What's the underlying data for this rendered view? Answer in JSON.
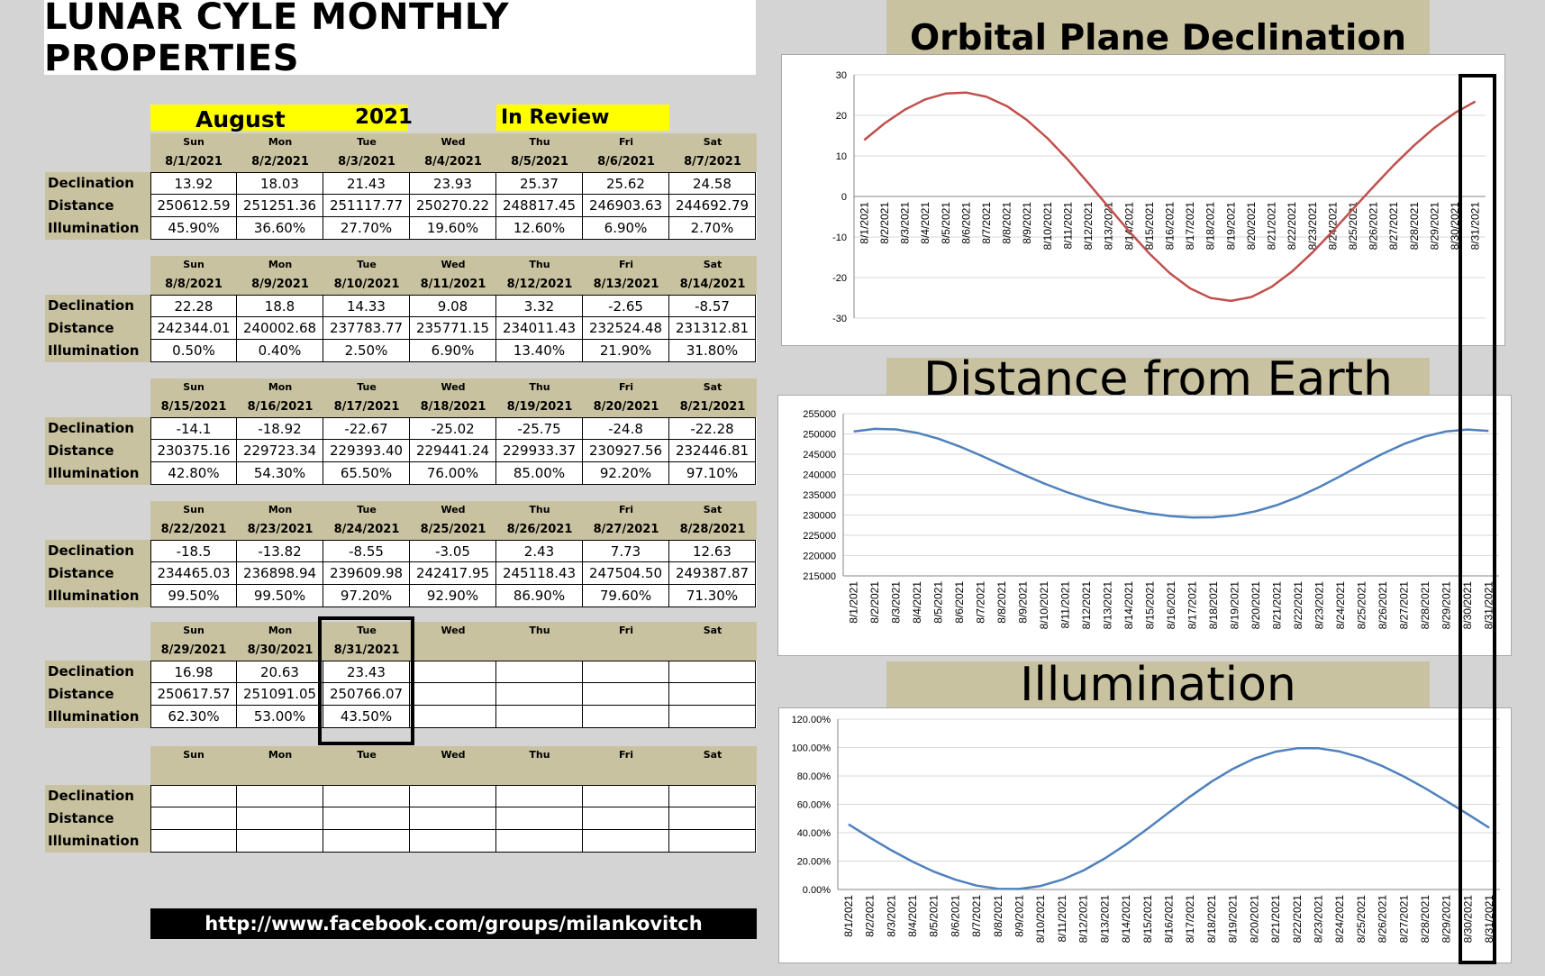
{
  "title": "LUNAR CYLE MONTHLY PROPERTIES",
  "header": {
    "month": "August",
    "year": "2021",
    "status": "In Review"
  },
  "row_labels": [
    "Declination",
    "Distance",
    "Illumination"
  ],
  "weeks": [
    {
      "days": [
        "Sun",
        "Mon",
        "Tue",
        "Wed",
        "Thu",
        "Fri",
        "Sat"
      ],
      "dates": [
        "8/1/2021",
        "8/2/2021",
        "8/3/2021",
        "8/4/2021",
        "8/5/2021",
        "8/6/2021",
        "8/7/2021"
      ],
      "declination": [
        "13.92",
        "18.03",
        "21.43",
        "23.93",
        "25.37",
        "25.62",
        "24.58"
      ],
      "distance": [
        "250612.59",
        "251251.36",
        "251117.77",
        "250270.22",
        "248817.45",
        "246903.63",
        "244692.79"
      ],
      "illumination": [
        "45.90%",
        "36.60%",
        "27.70%",
        "19.60%",
        "12.60%",
        "6.90%",
        "2.70%"
      ]
    },
    {
      "days": [
        "Sun",
        "Mon",
        "Tue",
        "Wed",
        "Thu",
        "Fri",
        "Sat"
      ],
      "dates": [
        "8/8/2021",
        "8/9/2021",
        "8/10/2021",
        "8/11/2021",
        "8/12/2021",
        "8/13/2021",
        "8/14/2021"
      ],
      "declination": [
        "22.28",
        "18.8",
        "14.33",
        "9.08",
        "3.32",
        "-2.65",
        "-8.57"
      ],
      "distance": [
        "242344.01",
        "240002.68",
        "237783.77",
        "235771.15",
        "234011.43",
        "232524.48",
        "231312.81"
      ],
      "illumination": [
        "0.50%",
        "0.40%",
        "2.50%",
        "6.90%",
        "13.40%",
        "21.90%",
        "31.80%"
      ]
    },
    {
      "days": [
        "Sun",
        "Mon",
        "Tue",
        "Wed",
        "Thu",
        "Fri",
        "Sat"
      ],
      "dates": [
        "8/15/2021",
        "8/16/2021",
        "8/17/2021",
        "8/18/2021",
        "8/19/2021",
        "8/20/2021",
        "8/21/2021"
      ],
      "declination": [
        "-14.1",
        "-18.92",
        "-22.67",
        "-25.02",
        "-25.75",
        "-24.8",
        "-22.28"
      ],
      "distance": [
        "230375.16",
        "229723.34",
        "229393.40",
        "229441.24",
        "229933.37",
        "230927.56",
        "232446.81"
      ],
      "illumination": [
        "42.80%",
        "54.30%",
        "65.50%",
        "76.00%",
        "85.00%",
        "92.20%",
        "97.10%"
      ]
    },
    {
      "days": [
        "Sun",
        "Mon",
        "Tue",
        "Wed",
        "Thu",
        "Fri",
        "Sat"
      ],
      "dates": [
        "8/22/2021",
        "8/23/2021",
        "8/24/2021",
        "8/25/2021",
        "8/26/2021",
        "8/27/2021",
        "8/28/2021"
      ],
      "declination": [
        "-18.5",
        "-13.82",
        "-8.55",
        "-3.05",
        "2.43",
        "7.73",
        "12.63"
      ],
      "distance": [
        "234465.03",
        "236898.94",
        "239609.98",
        "242417.95",
        "245118.43",
        "247504.50",
        "249387.87"
      ],
      "illumination": [
        "99.50%",
        "99.50%",
        "97.20%",
        "92.90%",
        "86.90%",
        "79.60%",
        "71.30%"
      ]
    },
    {
      "days": [
        "Sun",
        "Mon",
        "Tue",
        "Wed",
        "Thu",
        "Fri",
        "Sat"
      ],
      "dates": [
        "8/29/2021",
        "8/30/2021",
        "8/31/2021",
        "",
        "",
        "",
        ""
      ],
      "declination": [
        "16.98",
        "20.63",
        "23.43",
        "",
        "",
        "",
        ""
      ],
      "distance": [
        "250617.57",
        "251091.05",
        "250766.07",
        "",
        "",
        "",
        ""
      ],
      "illumination": [
        "62.30%",
        "53.00%",
        "43.50%",
        "",
        "",
        "",
        ""
      ]
    },
    {
      "days": [
        "Sun",
        "Mon",
        "Tue",
        "Wed",
        "Thu",
        "Fri",
        "Sat"
      ],
      "dates": [
        "",
        "",
        "",
        "",
        "",
        "",
        ""
      ],
      "declination": [
        "",
        "",
        "",
        "",
        "",
        "",
        ""
      ],
      "distance": [
        "",
        "",
        "",
        "",
        "",
        "",
        ""
      ],
      "illumination": [
        "",
        "",
        "",
        "",
        "",
        "",
        ""
      ]
    }
  ],
  "footer_url": "http://www.facebook.com/groups/milankovitch",
  "chart_data": [
    {
      "type": "line",
      "title": "Orbital Plane Declination",
      "x": [
        "8/1/2021",
        "8/2/2021",
        "8/3/2021",
        "8/4/2021",
        "8/5/2021",
        "8/6/2021",
        "8/7/2021",
        "8/8/2021",
        "8/9/2021",
        "8/10/2021",
        "8/11/2021",
        "8/12/2021",
        "8/13/2021",
        "8/14/2021",
        "8/15/2021",
        "8/16/2021",
        "8/17/2021",
        "8/18/2021",
        "8/19/2021",
        "8/20/2021",
        "8/21/2021",
        "8/22/2021",
        "8/23/2021",
        "8/24/2021",
        "8/25/2021",
        "8/26/2021",
        "8/27/2021",
        "8/28/2021",
        "8/29/2021",
        "8/30/2021",
        "8/31/2021"
      ],
      "values": [
        13.92,
        18.03,
        21.43,
        23.93,
        25.37,
        25.62,
        24.58,
        22.28,
        18.8,
        14.33,
        9.08,
        3.32,
        -2.65,
        -8.57,
        -14.1,
        -18.92,
        -22.67,
        -25.02,
        -25.75,
        -24.8,
        -22.28,
        -18.5,
        -13.82,
        -8.55,
        -3.05,
        2.43,
        7.73,
        12.63,
        16.98,
        20.63,
        23.43
      ],
      "ylim": [
        -30,
        30
      ],
      "yticks": [
        "30",
        "20",
        "10",
        "0",
        "-10",
        "-20",
        "-30"
      ],
      "color": "#c0504d"
    },
    {
      "type": "line",
      "title": "Distance from Earth",
      "x": [
        "8/1/2021",
        "8/2/2021",
        "8/3/2021",
        "8/4/2021",
        "8/5/2021",
        "8/6/2021",
        "8/7/2021",
        "8/8/2021",
        "8/9/2021",
        "8/10/2021",
        "8/11/2021",
        "8/12/2021",
        "8/13/2021",
        "8/14/2021",
        "8/15/2021",
        "8/16/2021",
        "8/17/2021",
        "8/18/2021",
        "8/19/2021",
        "8/20/2021",
        "8/21/2021",
        "8/22/2021",
        "8/23/2021",
        "8/24/2021",
        "8/25/2021",
        "8/26/2021",
        "8/27/2021",
        "8/28/2021",
        "8/29/2021",
        "8/30/2021",
        "8/31/2021"
      ],
      "values": [
        250612.59,
        251251.36,
        251117.77,
        250270.22,
        248817.45,
        246903.63,
        244692.79,
        242344.01,
        240002.68,
        237783.77,
        235771.15,
        234011.43,
        232524.48,
        231312.81,
        230375.16,
        229723.34,
        229393.4,
        229441.24,
        229933.37,
        230927.56,
        232446.81,
        234465.03,
        236898.94,
        239609.98,
        242417.95,
        245118.43,
        247504.5,
        249387.87,
        250617.57,
        251091.05,
        250766.07
      ],
      "ylim": [
        215000,
        255000
      ],
      "yticks": [
        "255000",
        "250000",
        "245000",
        "240000",
        "235000",
        "230000",
        "225000",
        "220000",
        "215000"
      ],
      "color": "#4f81bd"
    },
    {
      "type": "line",
      "title": "Illumination",
      "x": [
        "8/1/2021",
        "8/2/2021",
        "8/3/2021",
        "8/4/2021",
        "8/5/2021",
        "8/6/2021",
        "8/7/2021",
        "8/8/2021",
        "8/9/2021",
        "8/10/2021",
        "8/11/2021",
        "8/12/2021",
        "8/13/2021",
        "8/14/2021",
        "8/15/2021",
        "8/16/2021",
        "8/17/2021",
        "8/18/2021",
        "8/19/2021",
        "8/20/2021",
        "8/21/2021",
        "8/22/2021",
        "8/23/2021",
        "8/24/2021",
        "8/25/2021",
        "8/26/2021",
        "8/27/2021",
        "8/28/2021",
        "8/29/2021",
        "8/30/2021",
        "8/31/2021"
      ],
      "values": [
        45.9,
        36.6,
        27.7,
        19.6,
        12.6,
        6.9,
        2.7,
        0.5,
        0.4,
        2.5,
        6.9,
        13.4,
        21.9,
        31.8,
        42.8,
        54.3,
        65.5,
        76.0,
        85.0,
        92.2,
        97.1,
        99.5,
        99.5,
        97.2,
        92.9,
        86.9,
        79.6,
        71.3,
        62.3,
        53.0,
        43.5
      ],
      "ylim": [
        0,
        120
      ],
      "yticks": [
        "120.00%",
        "100.00%",
        "80.00%",
        "60.00%",
        "40.00%",
        "20.00%",
        "0.00%"
      ],
      "color": "#4f81bd"
    }
  ]
}
